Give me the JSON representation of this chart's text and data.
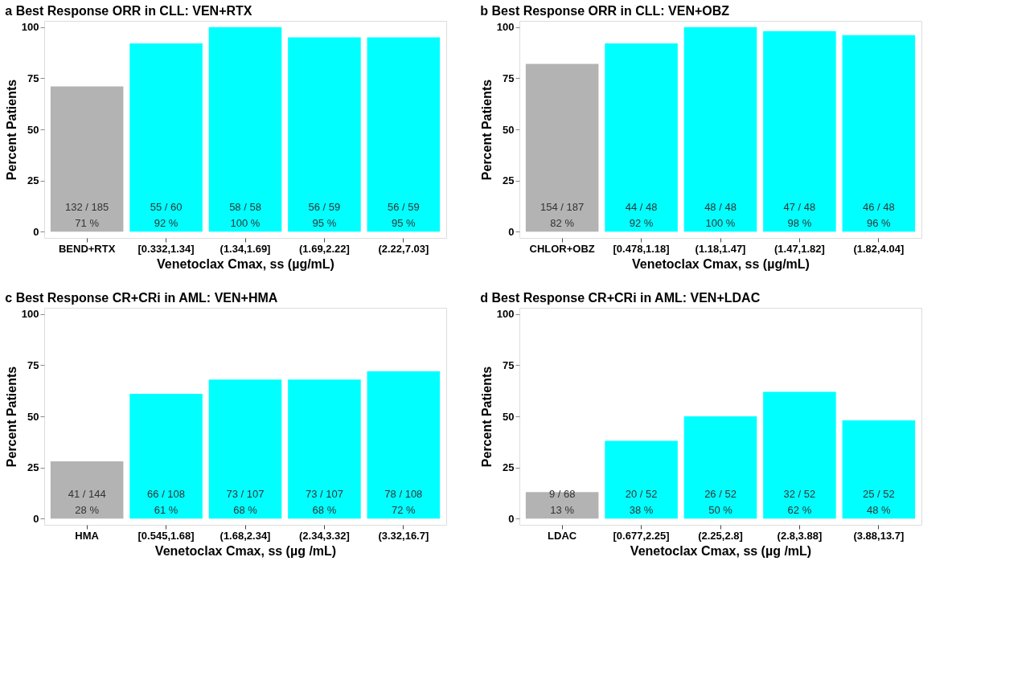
{
  "chart_data": [
    {
      "type": "bar",
      "title": "a   Best Response ORR in CLL: VEN+RTX",
      "xlabel": "Venetoclax Cmax, ss (µg/mL)",
      "ylabel": "Percent Patients",
      "categories": [
        "BEND+RTX",
        "[0.332,1.34]",
        "(1.34,1.69]",
        "(1.69,2.22]",
        "(2.22,7.03]"
      ],
      "values": [
        71,
        92,
        100,
        95,
        95
      ],
      "colors": [
        "#b3b3b3",
        "#00ffff",
        "#00ffff",
        "#00ffff",
        "#00ffff"
      ],
      "value_labels": [
        "132 / 185\n71 %",
        "55 / 60\n92 %",
        "58 / 58\n100 %",
        "56 / 59\n95 %",
        "56 / 59\n95 %"
      ],
      "ylim": [
        -3,
        103
      ],
      "yticks": [
        0,
        25,
        50,
        75,
        100
      ],
      "grid": false
    },
    {
      "type": "bar",
      "title": "b   Best Response ORR in CLL: VEN+OBZ",
      "xlabel": "Venetoclax Cmax, ss (µg/mL)",
      "ylabel": "Percent Patients",
      "categories": [
        "CHLOR+OBZ",
        "[0.478,1.18]",
        "(1.18,1.47]",
        "(1.47,1.82]",
        "(1.82,4.04]"
      ],
      "values": [
        82,
        92,
        100,
        98,
        96
      ],
      "colors": [
        "#b3b3b3",
        "#00ffff",
        "#00ffff",
        "#00ffff",
        "#00ffff"
      ],
      "value_labels": [
        "154 / 187\n82 %",
        "44 / 48\n92 %",
        "48 / 48\n100 %",
        "47 / 48\n98 %",
        "46 / 48\n96 %"
      ],
      "ylim": [
        -3,
        103
      ],
      "yticks": [
        0,
        25,
        50,
        75,
        100
      ],
      "grid": false
    },
    {
      "type": "bar",
      "title": "c   Best Response CR+CRi in AML: VEN+HMA",
      "xlabel": "Venetoclax Cmax, ss (µg /mL)",
      "ylabel": "Percent Patients",
      "categories": [
        "HMA",
        "[0.545,1.68]",
        "(1.68,2.34]",
        "(2.34,3.32]",
        "(3.32,16.7]"
      ],
      "values": [
        28,
        61,
        68,
        68,
        72
      ],
      "colors": [
        "#b3b3b3",
        "#00ffff",
        "#00ffff",
        "#00ffff",
        "#00ffff"
      ],
      "value_labels": [
        "41 / 144\n28 %",
        "66 / 108\n61 %",
        "73 / 107\n68 %",
        "73 / 107\n68 %",
        "78 / 108\n72 %"
      ],
      "ylim": [
        -3,
        103
      ],
      "yticks": [
        0,
        25,
        50,
        75,
        100
      ],
      "grid": false
    },
    {
      "type": "bar",
      "title": "d   Best Response CR+CRi in AML: VEN+LDAC",
      "xlabel": "Venetoclax Cmax, ss (µg /mL)",
      "ylabel": "Percent Patients",
      "categories": [
        "LDAC",
        "[0.677,2.25]",
        "(2.25,2.8]",
        "(2.8,3.88]",
        "(3.88,13.7]"
      ],
      "values": [
        13,
        38,
        50,
        62,
        48
      ],
      "colors": [
        "#b3b3b3",
        "#00ffff",
        "#00ffff",
        "#00ffff",
        "#00ffff"
      ],
      "value_labels": [
        "9 / 68\n13 %",
        "20 / 52\n38 %",
        "26 / 52\n50 %",
        "32 / 52\n62 %",
        "25 / 52\n48 %"
      ],
      "ylim": [
        -3,
        103
      ],
      "yticks": [
        0,
        25,
        50,
        75,
        100
      ],
      "grid": false
    }
  ]
}
